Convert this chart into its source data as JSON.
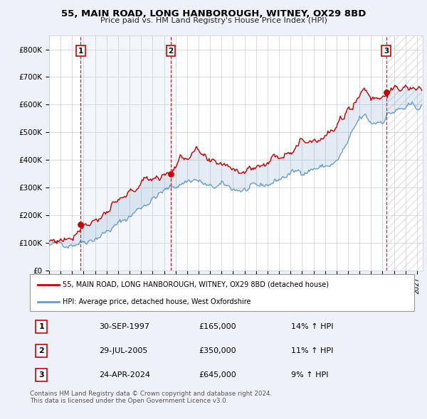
{
  "title": "55, MAIN ROAD, LONG HANBOROUGH, WITNEY, OX29 8BD",
  "subtitle": "Price paid vs. HM Land Registry's House Price Index (HPI)",
  "ylabel_vals": [
    "£0",
    "£100K",
    "£200K",
    "£300K",
    "£400K",
    "£500K",
    "£600K",
    "£700K",
    "£800K"
  ],
  "ylim": [
    0,
    850000
  ],
  "xlim_start": 1995.0,
  "xlim_end": 2027.5,
  "sale_dates": [
    1997.75,
    2005.58,
    2024.32
  ],
  "sale_prices": [
    165000,
    350000,
    645000
  ],
  "sale_labels": [
    "1",
    "2",
    "3"
  ],
  "sale_date_strs": [
    "30-SEP-1997",
    "29-JUL-2005",
    "24-APR-2024"
  ],
  "sale_price_strs": [
    "£165,000",
    "£350,000",
    "£645,000"
  ],
  "sale_pct_strs": [
    "14% ↑ HPI",
    "11% ↑ HPI",
    "9% ↑ HPI"
  ],
  "line1_color": "#cc0000",
  "line2_color": "#6699cc",
  "dot_color": "#cc0000",
  "dashed_color": "#cc0000",
  "legend1_label": "55, MAIN ROAD, LONG HANBOROUGH, WITNEY, OX29 8BD (detached house)",
  "legend2_label": "HPI: Average price, detached house, West Oxfordshire",
  "footnote": "Contains HM Land Registry data © Crown copyright and database right 2024.\nThis data is licensed under the Open Government Licence v3.0.",
  "background_color": "#eef2f8",
  "plot_bg_color": "#ffffff",
  "grid_color": "#cccccc",
  "table_rows": [
    [
      "1",
      "30-SEP-1997",
      "£165,000",
      "14% ↑ HPI"
    ],
    [
      "2",
      "29-JUL-2005",
      "£350,000",
      "11% ↑ HPI"
    ],
    [
      "3",
      "24-APR-2024",
      "£645,000",
      "9% ↑ HPI"
    ]
  ]
}
